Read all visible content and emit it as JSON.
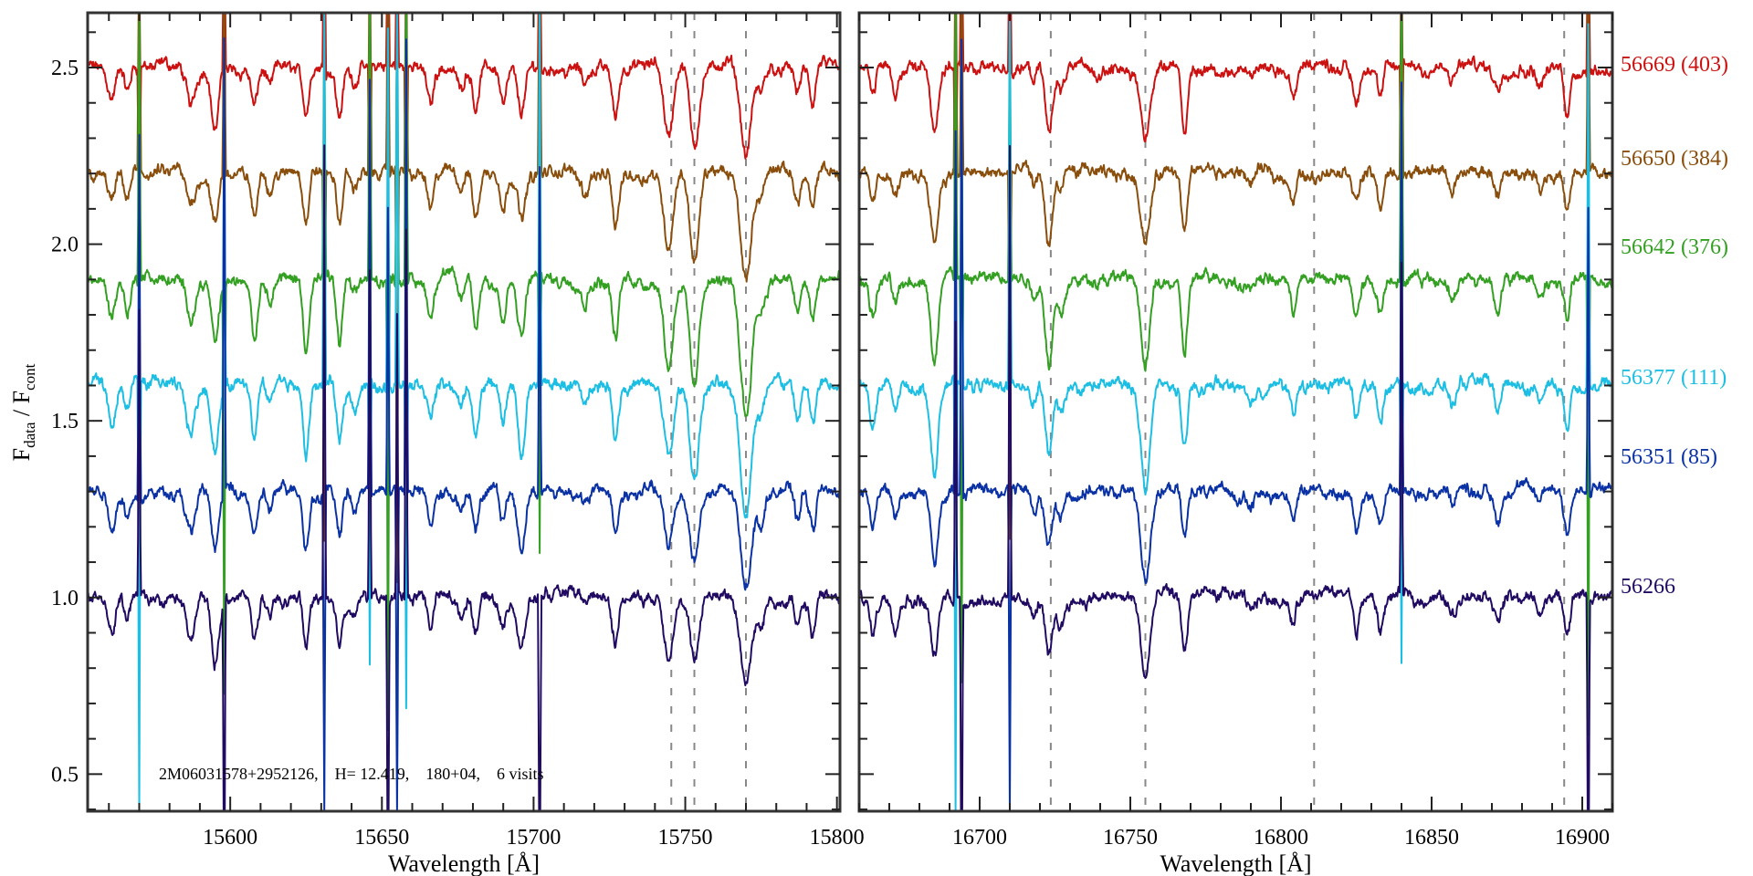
{
  "chart_data": {
    "type": "line",
    "title": "",
    "ylabel": {
      "f1": "F",
      "sub1": "data",
      "sep": " / ",
      "f2": "F",
      "sub2": "cont"
    },
    "ylim": [
      0.395,
      2.655
    ],
    "yticks": [
      "0.5",
      "1.0",
      "1.5",
      "2.0",
      "2.5"
    ],
    "yminor_step": 0.1,
    "annotation": "2M06031578+2952126,    H= 12.419,    180+04,    6 visits",
    "panels": [
      {
        "xlabel": "Wavelength [Å]",
        "xlim": [
          15553,
          15801
        ],
        "xticks": [
          "15600",
          "15650",
          "15700",
          "15750",
          "15800"
        ],
        "xminor_step": 10,
        "reference_lines": [
          15745.4,
          15753,
          15770
        ],
        "absorption_lines": [
          [
            15561,
            0.1,
            1.2
          ],
          [
            15566,
            0.08,
            1.0
          ],
          [
            15587,
            0.12,
            1.5
          ],
          [
            15595,
            0.18,
            1.2
          ],
          [
            15608,
            0.14,
            1.0
          ],
          [
            15613,
            0.06,
            1.0
          ],
          [
            15625,
            0.16,
            1.0
          ],
          [
            15636,
            0.15,
            1.0
          ],
          [
            15641,
            0.05,
            1.0
          ],
          [
            15666,
            0.1,
            1.0
          ],
          [
            15676,
            0.06,
            1.0
          ],
          [
            15681,
            0.12,
            1.0
          ],
          [
            15690,
            0.1,
            1.0
          ],
          [
            15696,
            0.16,
            1.2
          ],
          [
            15717,
            0.05,
            1.0
          ],
          [
            15727,
            0.14,
            1.0
          ],
          [
            15744.5,
            0.2,
            1.5
          ],
          [
            15753,
            0.24,
            1.5
          ],
          [
            15770,
            0.3,
            1.8
          ],
          [
            15775,
            0.08,
            1.2
          ],
          [
            15787,
            0.08,
            1.0
          ],
          [
            15792,
            0.12,
            1.0
          ]
        ],
        "spikes": [
          15570,
          15598,
          15631,
          15646,
          15652,
          15655,
          15658,
          15702
        ]
      },
      {
        "xlabel": "Wavelength [Å]",
        "xlim": [
          16660,
          16910
        ],
        "xticks": [
          "16700",
          "16750",
          "16800",
          "16850",
          "16900"
        ],
        "xminor_step": 10,
        "reference_lines": [
          16723.6,
          16755,
          16811,
          16894
        ],
        "absorption_lines": [
          [
            16664.5,
            0.1,
            1.0
          ],
          [
            16672,
            0.07,
            1.0
          ],
          [
            16685,
            0.2,
            1.2
          ],
          [
            16718,
            0.05,
            1.0
          ],
          [
            16723,
            0.2,
            1.2
          ],
          [
            16727,
            0.08,
            1.0
          ],
          [
            16755,
            0.24,
            1.5
          ],
          [
            16768,
            0.18,
            1.0
          ],
          [
            16790,
            0.04,
            1.0
          ],
          [
            16804,
            0.08,
            1.0
          ],
          [
            16825,
            0.1,
            1.0
          ],
          [
            16833,
            0.1,
            1.0
          ],
          [
            16857,
            0.05,
            1.0
          ],
          [
            16872,
            0.08,
            1.0
          ],
          [
            16886,
            0.04,
            1.0
          ],
          [
            16895,
            0.12,
            1.0
          ]
        ],
        "spikes": [
          16692,
          16694,
          16710,
          16840,
          16902
        ]
      }
    ],
    "series": [
      {
        "name": "56669",
        "label": "56669 (403)",
        "color": "#cc1111",
        "offset": 2.5,
        "depth_scale": 0.9
      },
      {
        "name": "56650",
        "label": "56650 (384)",
        "color": "#8a4e0c",
        "offset": 2.2,
        "depth_scale": 0.9
      },
      {
        "name": "56642",
        "label": "56642 (376)",
        "color": "#33a022",
        "offset": 1.9,
        "depth_scale": 1.1
      },
      {
        "name": "56377",
        "label": "56377 (111)",
        "color": "#1cbfe3",
        "offset": 1.6,
        "depth_scale": 1.1
      },
      {
        "name": "56351",
        "label": "56351 (85)",
        "color": "#0a32a5",
        "offset": 1.3,
        "depth_scale": 0.9
      },
      {
        "name": "56266",
        "label": "56266",
        "color": "#200a62",
        "offset": 1.0,
        "depth_scale": 0.9
      }
    ]
  }
}
